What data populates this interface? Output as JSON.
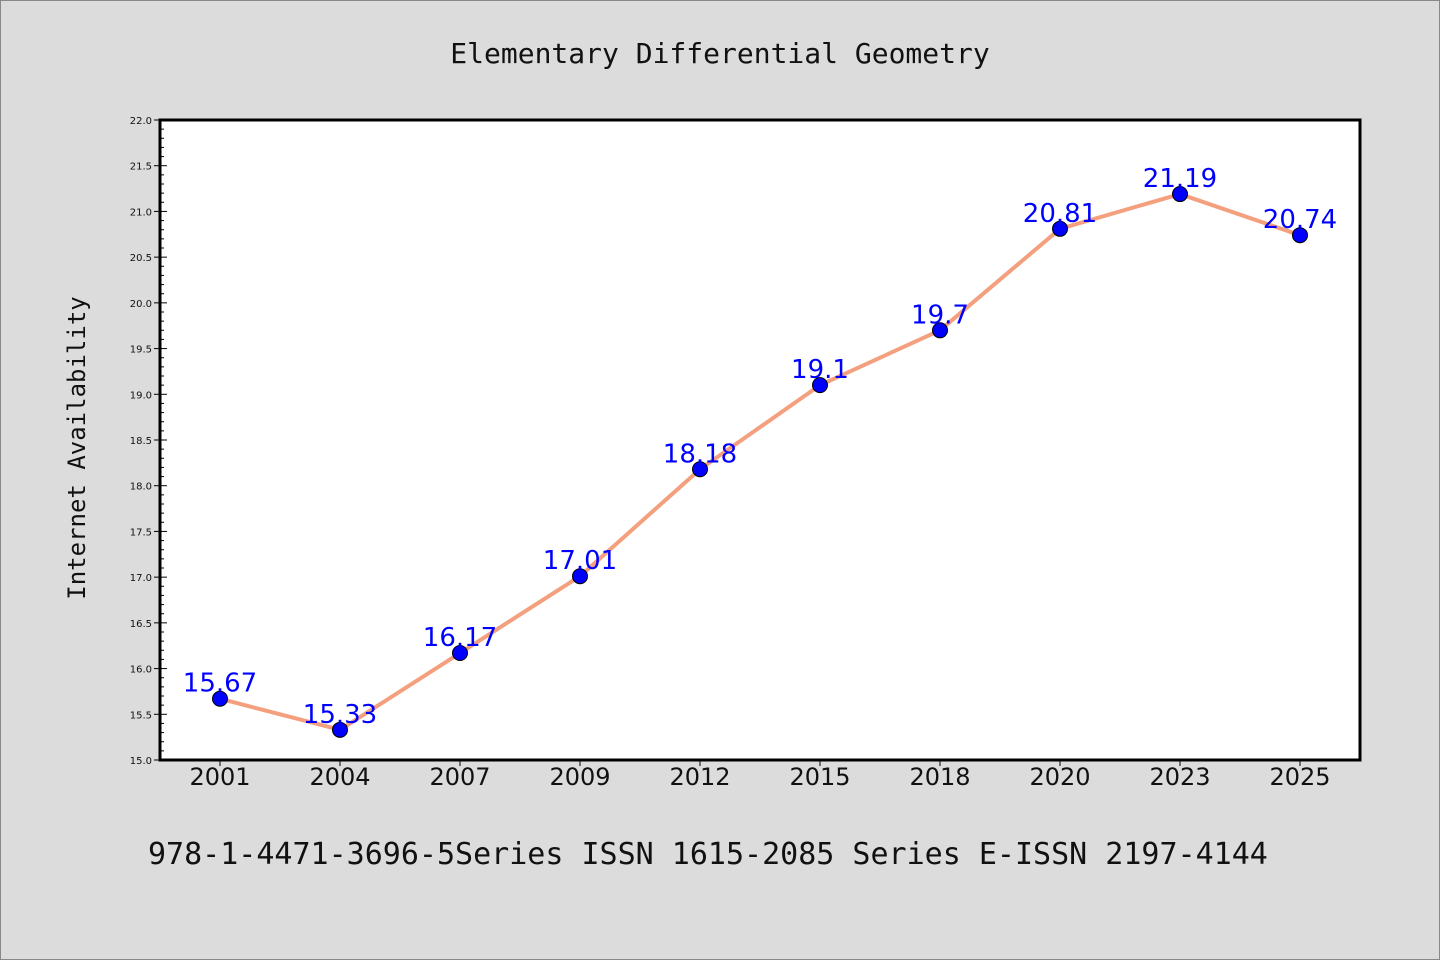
{
  "chart_data": {
    "type": "line",
    "title": "Elementary Differential Geometry",
    "ylabel": "Internet Availability",
    "xlabel": "",
    "categories": [
      "2001",
      "2004",
      "2007",
      "2009",
      "2012",
      "2015",
      "2018",
      "2020",
      "2023",
      "2025"
    ],
    "series": [
      {
        "values": [
          15.67,
          15.33,
          16.17,
          17.01,
          18.18,
          19.1,
          19.7,
          20.81,
          21.19,
          20.74
        ],
        "data_labels": [
          "15.67",
          "15.33",
          "16.17",
          "17.01",
          "18.18",
          "19.1",
          "19.7",
          "20.81",
          "21.19",
          "20.74"
        ]
      }
    ],
    "ylim": [
      15.0,
      22.0
    ],
    "yticks": [
      "15.0",
      "15.5",
      "16.0",
      "16.5",
      "17.0",
      "17.5",
      "18.0",
      "18.5",
      "19.0",
      "19.5",
      "20.0",
      "20.5",
      "21.0",
      "21.5",
      "22.0"
    ],
    "grid": false,
    "legend": "none",
    "colors": {
      "line": "#f4a07e",
      "marker": "#0000ff",
      "label": "#0000ff",
      "background": "#dcdcdc",
      "plot_background": "#ffffff"
    }
  },
  "footer": "978-1-4471-3696-5Series ISSN 1615-2085 Series E-ISSN 2197-4144"
}
